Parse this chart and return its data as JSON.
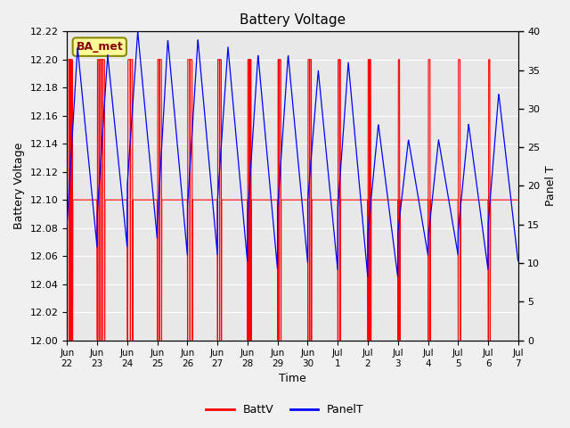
{
  "title": "Battery Voltage",
  "xlabel": "Time",
  "ylabel_left": "Battery Voltage",
  "ylabel_right": "Panel T",
  "legend_label": "BA_met",
  "ylim_left": [
    12.0,
    12.22
  ],
  "ylim_right": [
    0,
    40
  ],
  "yticks_left": [
    12.0,
    12.02,
    12.04,
    12.06,
    12.08,
    12.1,
    12.12,
    12.14,
    12.16,
    12.18,
    12.2,
    12.22
  ],
  "yticks_right": [
    0,
    5,
    10,
    15,
    20,
    25,
    30,
    35,
    40
  ],
  "background_color": "#f0f0f0",
  "plot_bg_color": "#e8e8e8",
  "grid_color": "#ffffff",
  "line_color_batt": "#ff0000",
  "line_color_panel": "#0000ff",
  "annotation_bg": "#ffff99",
  "annotation_border": "#888800",
  "x_tick_labels": [
    "Jun\n22",
    "Jun\n23",
    "Jun\n24",
    "Jun\n25",
    "Jun\n26",
    "Jun\n27",
    "Jun\n28",
    "Jun\n29",
    "Jun\n30",
    "Jul\n1",
    "Jul\n2",
    "Jul\n3",
    "Jul\n4",
    "Jul\n5",
    "Jul\n6",
    "Jul\n7"
  ],
  "x_tick_positions": [
    0,
    1,
    2,
    3,
    4,
    5,
    6,
    7,
    8,
    9,
    10,
    11,
    12,
    13,
    14,
    15
  ]
}
